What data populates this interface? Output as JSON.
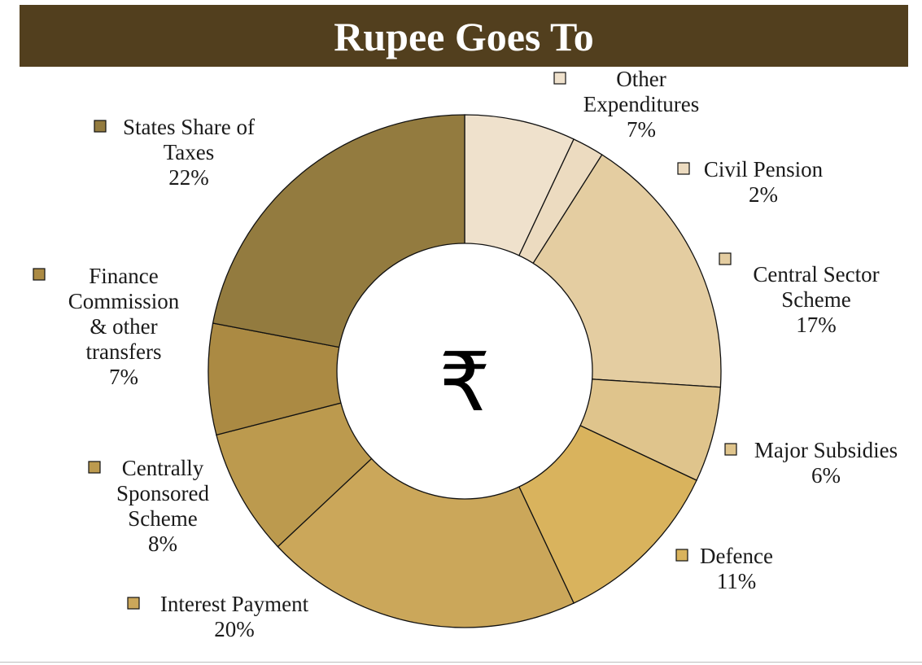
{
  "header": {
    "title": "Rupee Goes To"
  },
  "center_symbol": "₹",
  "chart_data": {
    "type": "pie",
    "variant": "doughnut",
    "title": "Rupee Goes To",
    "unit": "%",
    "legend_placement": "outside-labels",
    "slices": [
      {
        "name": "Other Expenditures",
        "label_lines": [
          "Other",
          "Expenditures"
        ],
        "value": 7,
        "value_label": "7%",
        "color": "#efe1cc"
      },
      {
        "name": "Civil Pension",
        "label_lines": [
          "Civil Pension"
        ],
        "value": 2,
        "value_label": "2%",
        "color": "#ecdbc0"
      },
      {
        "name": "Central Sector Scheme",
        "label_lines": [
          "Central Sector",
          "Scheme"
        ],
        "value": 17,
        "value_label": "17%",
        "color": "#e4cda1"
      },
      {
        "name": "Major Subsidies",
        "label_lines": [
          "Major Subsidies"
        ],
        "value": 6,
        "value_label": "6%",
        "color": "#dfc48c"
      },
      {
        "name": "Defence",
        "label_lines": [
          "Defence"
        ],
        "value": 11,
        "value_label": "11%",
        "color": "#d9b35d"
      },
      {
        "name": "Interest Payment",
        "label_lines": [
          "Interest Payment"
        ],
        "value": 20,
        "value_label": "20%",
        "color": "#cba75a"
      },
      {
        "name": "Centrally Sponsored Scheme",
        "label_lines": [
          "Centrally",
          "Sponsored",
          "Scheme"
        ],
        "value": 8,
        "value_label": "8%",
        "color": "#bc9a4e"
      },
      {
        "name": "Finance Commission & other transfers",
        "label_lines": [
          "Finance",
          "Commission",
          "& other",
          "transfers"
        ],
        "value": 7,
        "value_label": "7%",
        "color": "#ab8a43"
      },
      {
        "name": "States Share of Taxes",
        "label_lines": [
          "States Share of",
          "Taxes"
        ],
        "value": 22,
        "value_label": "22%",
        "color": "#937b3f"
      }
    ]
  }
}
